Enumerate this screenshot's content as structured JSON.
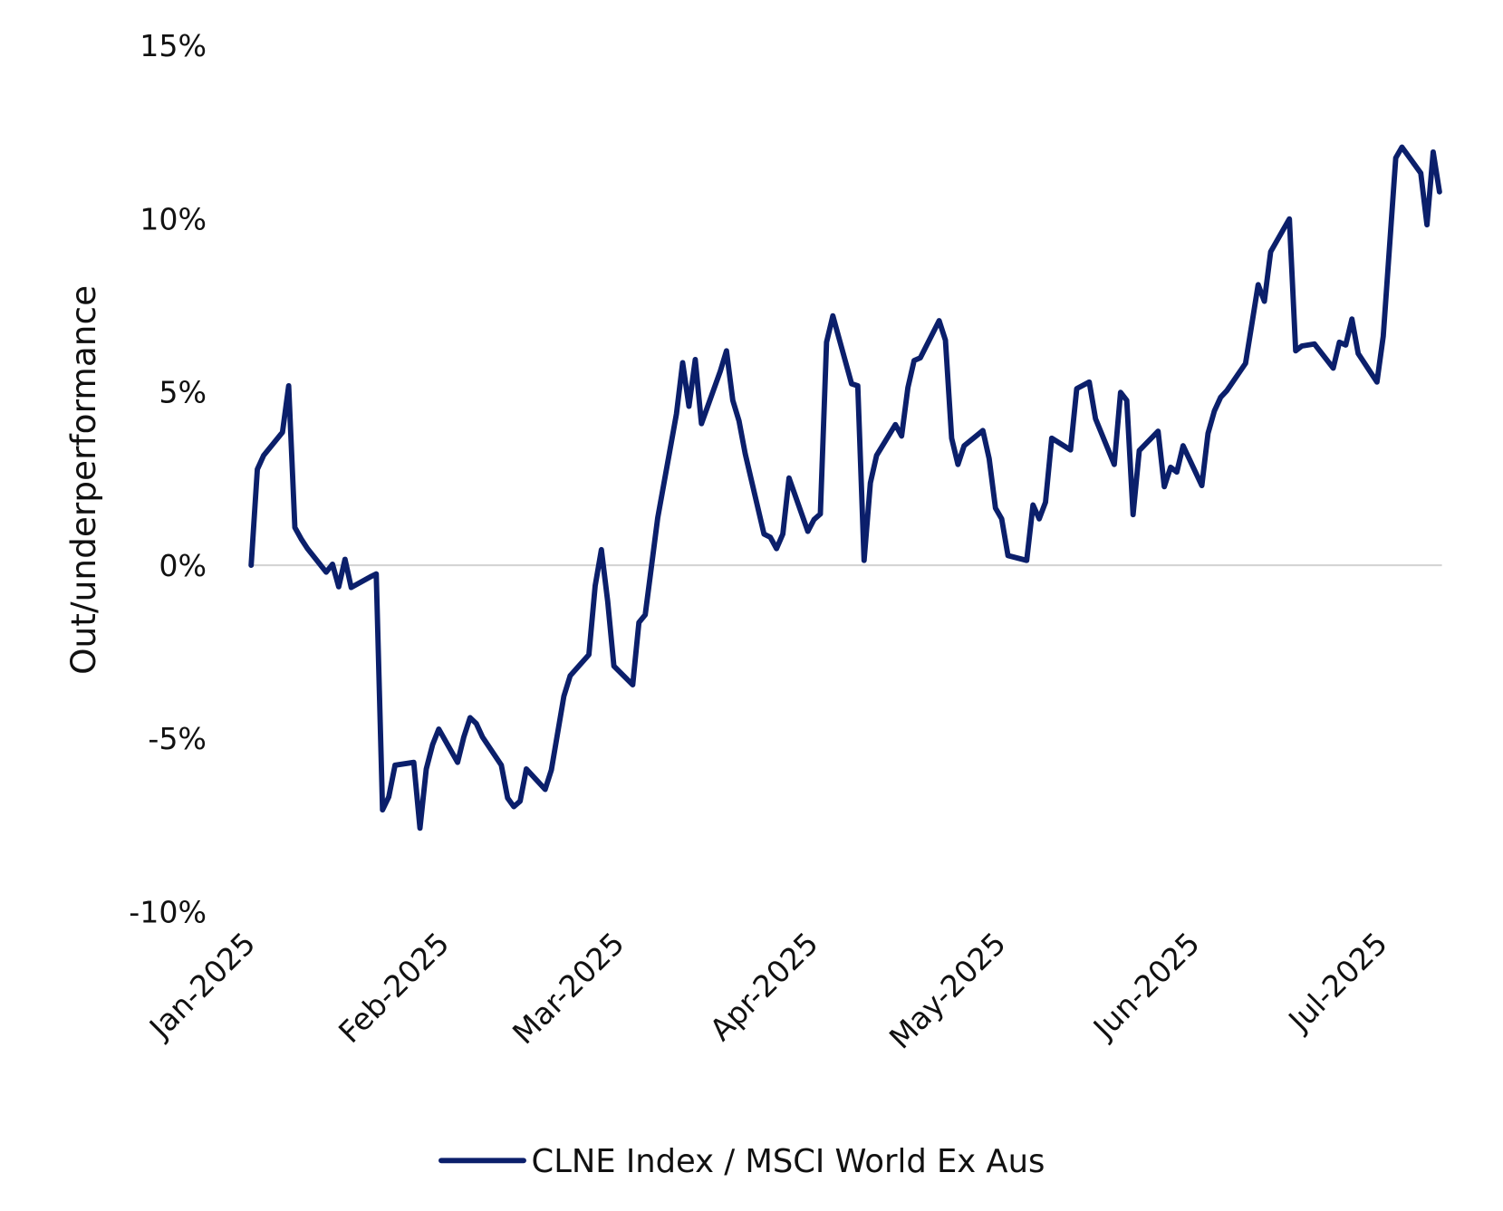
{
  "chart_data": {
    "type": "line",
    "title": "",
    "xlabel": "",
    "ylabel": "Out/underperformance",
    "ylim": [
      -10,
      15
    ],
    "yticks": [
      "15%",
      "10%",
      "5%",
      "0%",
      "-5%",
      "-10%"
    ],
    "ytick_values": [
      15,
      10,
      5,
      0,
      -5,
      -10
    ],
    "xticks": [
      "Jan-2025",
      "Feb-2025",
      "Mar-2025",
      "Apr-2025",
      "May-2025",
      "Jun-2025",
      "Jul-2025"
    ],
    "xtick_dates": [
      "2025-01-01",
      "2025-02-01",
      "2025-03-01",
      "2025-04-01",
      "2025-05-01",
      "2025-06-01",
      "2025-07-01"
    ],
    "xlim": [
      "2025-01-01",
      "2025-07-10"
    ],
    "grid": "zero line only",
    "legend_position": "bottom",
    "color": "#0b1f6b",
    "series": [
      {
        "name": "CLNE Index / MSCI World Ex Aus",
        "x": [
          "2025-01-01",
          "2025-01-02",
          "2025-01-03",
          "2025-01-06",
          "2025-01-07",
          "2025-01-08",
          "2025-01-09",
          "2025-01-10",
          "2025-01-13",
          "2025-01-14",
          "2025-01-15",
          "2025-01-16",
          "2025-01-17",
          "2025-01-20",
          "2025-01-21",
          "2025-01-22",
          "2025-01-23",
          "2025-01-24",
          "2025-01-27",
          "2025-01-28",
          "2025-01-29",
          "2025-01-30",
          "2025-01-31",
          "2025-02-03",
          "2025-02-04",
          "2025-02-05",
          "2025-02-06",
          "2025-02-07",
          "2025-02-10",
          "2025-02-11",
          "2025-02-12",
          "2025-02-13",
          "2025-02-14",
          "2025-02-17",
          "2025-02-18",
          "2025-02-20",
          "2025-02-21",
          "2025-02-24",
          "2025-02-25",
          "2025-02-26",
          "2025-02-27",
          "2025-02-28",
          "2025-03-03",
          "2025-03-04",
          "2025-03-05",
          "2025-03-07",
          "2025-03-10",
          "2025-03-11",
          "2025-03-12",
          "2025-03-13",
          "2025-03-14",
          "2025-03-17",
          "2025-03-18",
          "2025-03-19",
          "2025-03-20",
          "2025-03-21",
          "2025-03-24",
          "2025-03-25",
          "2025-03-26",
          "2025-03-27",
          "2025-03-28",
          "2025-03-31",
          "2025-04-01",
          "2025-04-02",
          "2025-04-03",
          "2025-04-04",
          "2025-04-07",
          "2025-04-08",
          "2025-04-09",
          "2025-04-10",
          "2025-04-11",
          "2025-04-14",
          "2025-04-15",
          "2025-04-16",
          "2025-04-17",
          "2025-04-18",
          "2025-04-21",
          "2025-04-22",
          "2025-04-23",
          "2025-04-24",
          "2025-04-25",
          "2025-04-28",
          "2025-04-29",
          "2025-04-30",
          "2025-05-01",
          "2025-05-02",
          "2025-05-05",
          "2025-05-06",
          "2025-05-07",
          "2025-05-08",
          "2025-05-09",
          "2025-05-12",
          "2025-05-13",
          "2025-05-15",
          "2025-05-16",
          "2025-05-19",
          "2025-05-20",
          "2025-05-21",
          "2025-05-22",
          "2025-05-23",
          "2025-05-26",
          "2025-05-27",
          "2025-05-28",
          "2025-05-29",
          "2025-05-30",
          "2025-06-02",
          "2025-06-03",
          "2025-06-04",
          "2025-06-05",
          "2025-06-06",
          "2025-06-09",
          "2025-06-11",
          "2025-06-12",
          "2025-06-13",
          "2025-06-16",
          "2025-06-17",
          "2025-06-18",
          "2025-06-20",
          "2025-06-23",
          "2025-06-24",
          "2025-06-25",
          "2025-06-26",
          "2025-06-27",
          "2025-06-30",
          "2025-07-01",
          "2025-07-03",
          "2025-07-04",
          "2025-07-07",
          "2025-07-08",
          "2025-07-09",
          "2025-07-10"
        ],
        "values": [
          0,
          2.77,
          3.17,
          3.84,
          5.18,
          1.09,
          0.76,
          0.48,
          -0.2,
          0.03,
          -0.62,
          0.17,
          -0.64,
          -0.34,
          -0.25,
          -7.06,
          -6.69,
          -5.77,
          -5.69,
          -7.59,
          -5.88,
          -5.18,
          -4.73,
          -5.69,
          -4.96,
          -4.4,
          -4.57,
          -4.96,
          -5.77,
          -6.72,
          -6.97,
          -6.81,
          -5.88,
          -6.47,
          -5.91,
          -3.78,
          -3.19,
          -2.58,
          -0.59,
          0.45,
          -1.04,
          -2.91,
          -3.45,
          -1.65,
          -1.43,
          1.37,
          4.37,
          5.85,
          4.59,
          5.94,
          4.09,
          5.6,
          6.19,
          4.76,
          4.17,
          3.22,
          0.9,
          0.81,
          0.48,
          0.9,
          2.52,
          0.98,
          1.32,
          1.48,
          6.44,
          7.2,
          5.24,
          5.18,
          0.14,
          2.38,
          3.17,
          4.06,
          3.73,
          5.13,
          5.91,
          5.99,
          7.06,
          6.5,
          3.67,
          2.91,
          3.45,
          3.89,
          3.08,
          1.65,
          1.34,
          0.28,
          0.14,
          1.74,
          1.34,
          1.82,
          3.67,
          3.33,
          5.1,
          5.29,
          4.23,
          2.91,
          4.99,
          4.76,
          1.46,
          3.31,
          3.87,
          2.27,
          2.83,
          2.69,
          3.45,
          2.3,
          3.81,
          4.45,
          4.85,
          5.04,
          5.83,
          8.1,
          7.62,
          9.05,
          10.0,
          6.19,
          6.33,
          6.39,
          5.69,
          6.44,
          6.36,
          7.11,
          6.11,
          5.29,
          6.61,
          11.76,
          12.07,
          11.32,
          9.83,
          11.93,
          10.78
        ]
      }
    ]
  }
}
